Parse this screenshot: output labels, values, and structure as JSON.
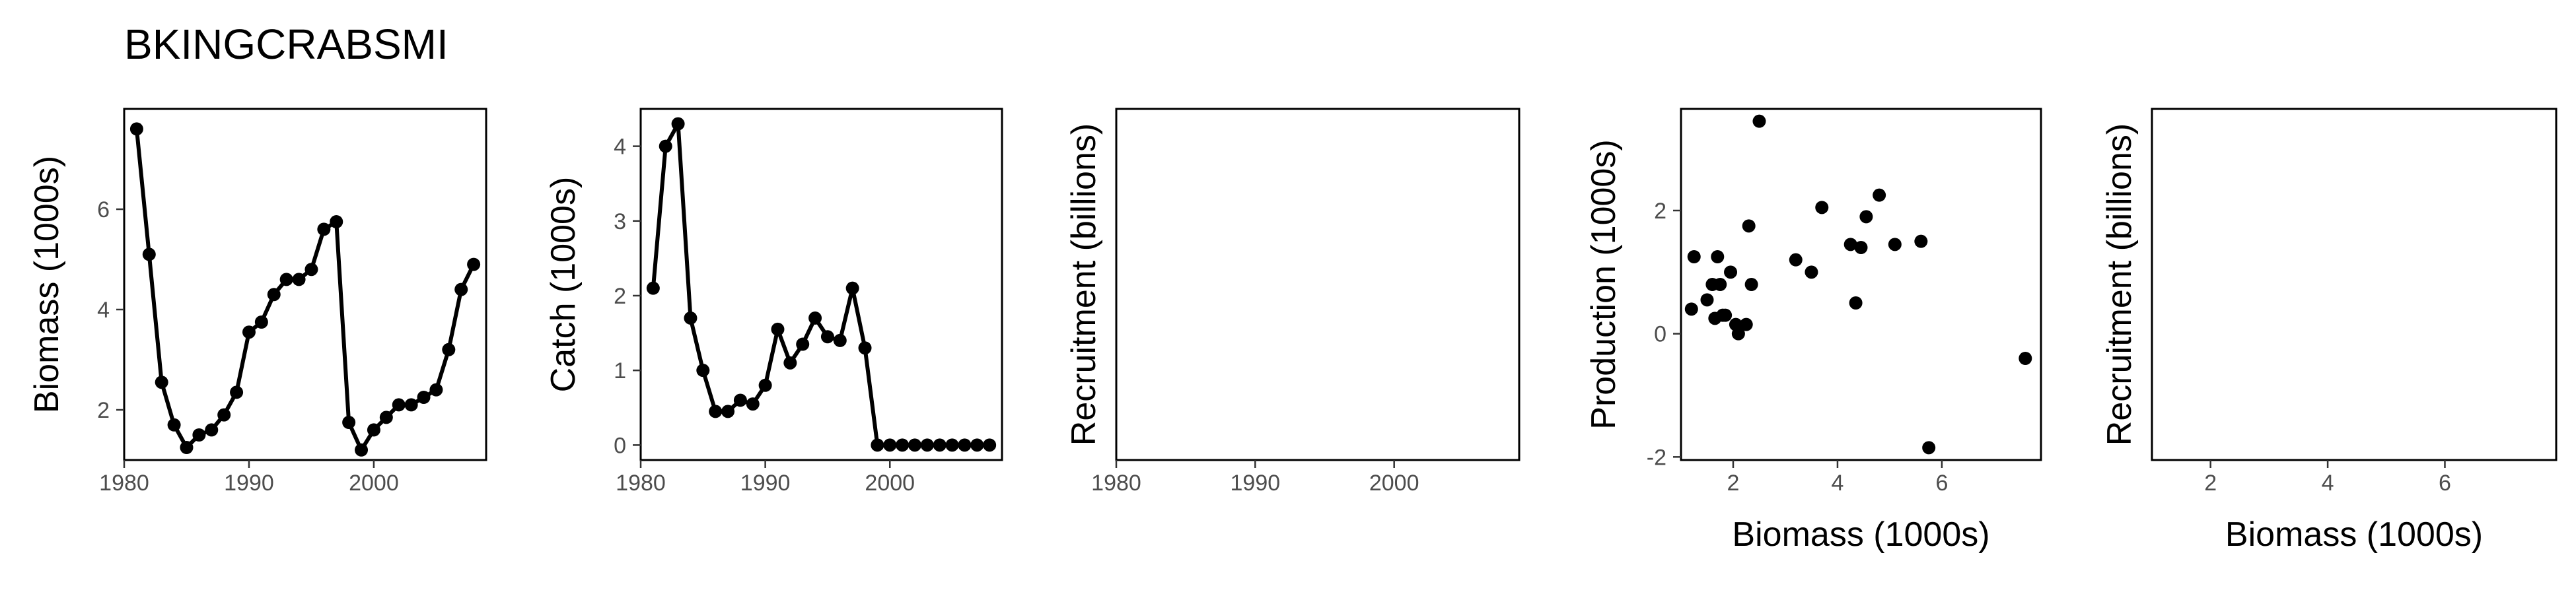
{
  "page_title": "BKINGCRABSMI",
  "chart_data": [
    {
      "type": "line",
      "ylabel": "Biomass (1000s)",
      "xlim": [
        1980,
        2009
      ],
      "ylim": [
        1,
        8
      ],
      "xticks": [
        1980,
        1990,
        2000
      ],
      "yticks": [
        2,
        4,
        6
      ],
      "points": true,
      "series": [
        {
          "x": [
            1981,
            1982,
            1983,
            1984,
            1985,
            1986,
            1987,
            1988,
            1989,
            1990,
            1991,
            1992,
            1993,
            1994,
            1995,
            1996,
            1997,
            1998,
            1999,
            2000,
            2001,
            2002,
            2003,
            2004,
            2005,
            2006,
            2007,
            2008
          ],
          "values": [
            7.6,
            5.1,
            2.55,
            1.7,
            1.25,
            1.5,
            1.6,
            1.9,
            2.35,
            3.55,
            3.75,
            4.3,
            4.6,
            4.6,
            4.8,
            5.6,
            5.75,
            1.75,
            1.2,
            1.6,
            1.85,
            2.1,
            2.1,
            2.25,
            2.4,
            3.2,
            4.4,
            4.9
          ]
        }
      ]
    },
    {
      "type": "line",
      "ylabel": "Catch (1000s)",
      "xlim": [
        1980,
        2009
      ],
      "ylim": [
        -0.2,
        4.5
      ],
      "xticks": [
        1980,
        1990,
        2000
      ],
      "yticks": [
        0,
        1,
        2,
        3,
        4
      ],
      "points": true,
      "series": [
        {
          "x": [
            1981,
            1982,
            1983,
            1984,
            1985,
            1986,
            1987,
            1988,
            1989,
            1990,
            1991,
            1992,
            1993,
            1994,
            1995,
            1996,
            1997,
            1998,
            1999,
            2000,
            2001,
            2002,
            2003,
            2004,
            2005,
            2006,
            2007,
            2008
          ],
          "values": [
            2.1,
            4.0,
            4.3,
            1.7,
            1.0,
            0.45,
            0.45,
            0.6,
            0.55,
            0.8,
            1.55,
            1.1,
            1.35,
            1.7,
            1.45,
            1.4,
            2.1,
            1.3,
            0.0,
            0.0,
            0.0,
            0.0,
            0.0,
            0.0,
            0.0,
            0.0,
            0.0,
            0.0
          ]
        }
      ]
    },
    {
      "type": "line",
      "ylabel": "Recruitment (billions)",
      "xlim": [
        1980,
        2009
      ],
      "ylim": [
        0,
        1
      ],
      "xticks": [
        1980,
        1990,
        2000
      ],
      "yticks": [],
      "series": []
    },
    {
      "type": "scatter",
      "xlabel": "Biomass (1000s)",
      "ylabel": "Production (1000s)",
      "xlim": [
        1.0,
        7.9
      ],
      "ylim": [
        -2.05,
        3.65
      ],
      "xticks": [
        2,
        4,
        6
      ],
      "yticks": [
        -2,
        0,
        2
      ],
      "series": [
        {
          "x": [
            1.25,
            1.2,
            1.5,
            1.6,
            1.65,
            1.7,
            1.75,
            1.8,
            1.85,
            1.95,
            2.05,
            2.1,
            2.25,
            2.3,
            2.35,
            2.5,
            3.2,
            3.5,
            3.7,
            4.25,
            4.35,
            4.45,
            4.55,
            4.8,
            5.1,
            5.6,
            5.75,
            7.6
          ],
          "values": [
            1.25,
            0.4,
            0.55,
            0.8,
            0.25,
            1.25,
            0.8,
            0.3,
            0.3,
            1.0,
            0.15,
            0.0,
            0.15,
            1.75,
            0.8,
            3.45,
            1.2,
            1.0,
            2.05,
            1.45,
            0.5,
            1.4,
            1.9,
            2.25,
            1.45,
            1.5,
            -1.85,
            -0.4
          ]
        }
      ]
    },
    {
      "type": "scatter",
      "xlabel": "Biomass (1000s)",
      "ylabel": "Recruitment (billions)",
      "xlim": [
        1.0,
        7.9
      ],
      "ylim": [
        0,
        1
      ],
      "xticks": [
        2,
        4,
        6
      ],
      "yticks": [],
      "series": []
    }
  ]
}
